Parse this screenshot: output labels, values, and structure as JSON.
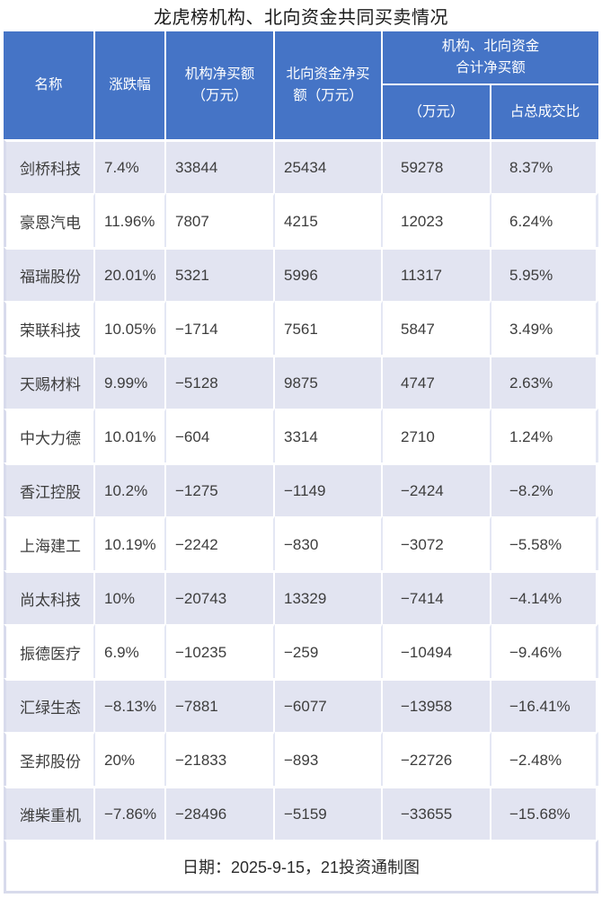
{
  "title": "龙虎榜机构、北向资金共同买卖情况",
  "footer": {
    "note": "日期：2025-9-15，21投资通制图"
  },
  "colors": {
    "header_bg": "#4574C6",
    "header_text": "#FFFFFF",
    "row_stripe_bg": "#E2E4F1",
    "row_plain_bg": "#FFFFFF",
    "grid_line_light": "#E4E7F4",
    "outer_border": "#D8DBEC",
    "body_text": "#3D3D3D",
    "title_text": "#1A1A1A"
  },
  "chart_data": {
    "type": "table",
    "title": "龙虎榜机构、北向资金共同买卖情况",
    "header": {
      "name": "名称",
      "change": "涨跌幅",
      "inst_net": "机构净买额\n（万元）",
      "north_net": "北向资金净买\n额（万元）",
      "combined_group": "机构、北向资金\n合计净买额",
      "combined_amount": "（万元）",
      "combined_ratio": "占总成交比"
    },
    "row_keys": [
      "name",
      "change",
      "inst-net",
      "north-net",
      "combined-net",
      "turnover-ratio"
    ],
    "rows": [
      [
        "剑桥科技",
        "7.4%",
        "33844",
        "25434",
        "59278",
        "8.37%"
      ],
      [
        "豪恩汽电",
        "11.96%",
        "7807",
        "4215",
        "12023",
        "6.24%"
      ],
      [
        "福瑞股份",
        "20.01%",
        "5321",
        "5996",
        "11317",
        "5.95%"
      ],
      [
        "荣联科技",
        "10.05%",
        "−1714",
        "7561",
        "5847",
        "3.49%"
      ],
      [
        "天赐材料",
        "9.99%",
        "−5128",
        "9875",
        "4747",
        "2.63%"
      ],
      [
        "中大力德",
        "10.01%",
        "−604",
        "3314",
        "2710",
        "1.24%"
      ],
      [
        "香江控股",
        "10.2%",
        "−1275",
        "−1149",
        "−2424",
        "−8.2%"
      ],
      [
        "上海建工",
        "10.19%",
        "−2242",
        "−830",
        "−3072",
        "−5.58%"
      ],
      [
        "尚太科技",
        "10%",
        "−20743",
        "13329",
        "−7414",
        "−4.14%"
      ],
      [
        "振德医疗",
        "6.9%",
        "−10235",
        "−259",
        "−10494",
        "−9.46%"
      ],
      [
        "汇绿生态",
        "−8.13%",
        "−7881",
        "−6077",
        "−13958",
        "−16.41%"
      ],
      [
        "圣邦股份",
        "20%",
        "−21833",
        "−893",
        "−22726",
        "−2.48%"
      ],
      [
        "潍柴重机",
        "−7.86%",
        "−28496",
        "−5159",
        "−33655",
        "−15.68%"
      ]
    ]
  }
}
